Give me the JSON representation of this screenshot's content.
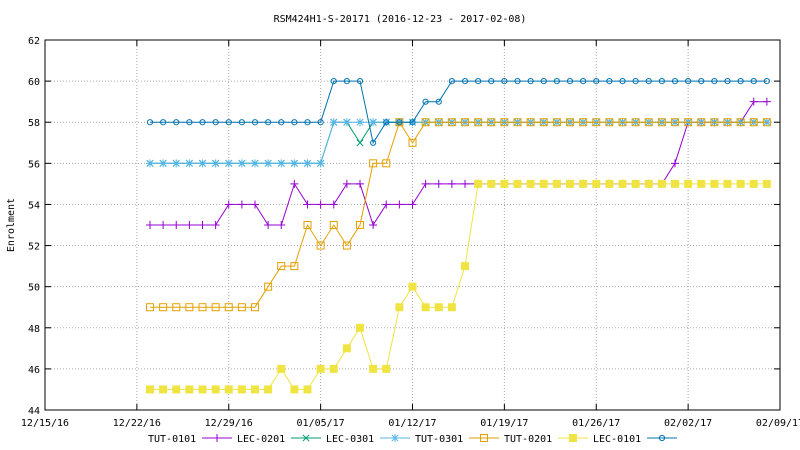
{
  "chart_data": {
    "type": "line",
    "title": "RSM424H1-S-20171 (2016-12-23 - 2017-02-08)",
    "xlabel": "",
    "ylabel": "Enrolment",
    "xlim": [
      "2016-12-15",
      "2017-02-09"
    ],
    "ylim": [
      44,
      62
    ],
    "x_ticks": [
      "12/15/16",
      "12/22/16",
      "12/29/16",
      "01/05/17",
      "01/12/17",
      "01/19/17",
      "01/26/17",
      "02/02/17",
      "02/09/17"
    ],
    "y_ticks": [
      44,
      46,
      48,
      50,
      52,
      54,
      56,
      58,
      60,
      62
    ],
    "grid": true,
    "legend_position": "bottom",
    "x": [
      "2016-12-23",
      "2016-12-24",
      "2016-12-25",
      "2016-12-26",
      "2016-12-27",
      "2016-12-28",
      "2016-12-29",
      "2016-12-30",
      "2016-12-31",
      "2017-01-01",
      "2017-01-02",
      "2017-01-03",
      "2017-01-04",
      "2017-01-05",
      "2017-01-06",
      "2017-01-07",
      "2017-01-08",
      "2017-01-09",
      "2017-01-10",
      "2017-01-11",
      "2017-01-12",
      "2017-01-13",
      "2017-01-14",
      "2017-01-15",
      "2017-01-16",
      "2017-01-17",
      "2017-01-18",
      "2017-01-19",
      "2017-01-20",
      "2017-01-21",
      "2017-01-22",
      "2017-01-23",
      "2017-01-24",
      "2017-01-25",
      "2017-01-26",
      "2017-01-27",
      "2017-01-28",
      "2017-01-29",
      "2017-01-30",
      "2017-01-31",
      "2017-02-01",
      "2017-02-02",
      "2017-02-03",
      "2017-02-04",
      "2017-02-05",
      "2017-02-06",
      "2017-02-07",
      "2017-02-08"
    ],
    "series": [
      {
        "name": "TUT-0101",
        "color": "#9400d3",
        "marker": "plus",
        "values": [
          53,
          53,
          53,
          53,
          53,
          53,
          54,
          54,
          54,
          53,
          53,
          55,
          54,
          54,
          54,
          55,
          55,
          53,
          54,
          54,
          54,
          55,
          55,
          55,
          55,
          55,
          55,
          55,
          55,
          55,
          55,
          55,
          55,
          55,
          55,
          55,
          55,
          55,
          55,
          55,
          56,
          58,
          58,
          58,
          58,
          58,
          59,
          59
        ]
      },
      {
        "name": "LEC-0201",
        "color": "#009e73",
        "marker": "x",
        "values": [
          56,
          56,
          56,
          56,
          56,
          56,
          56,
          56,
          56,
          56,
          56,
          56,
          56,
          56,
          58,
          58,
          57,
          58,
          58,
          58,
          58,
          58,
          58,
          58,
          58,
          58,
          58,
          58,
          58,
          58,
          58,
          58,
          58,
          58,
          58,
          58,
          58,
          58,
          58,
          58,
          58,
          58,
          58,
          58,
          58,
          58,
          58,
          58
        ]
      },
      {
        "name": "LEC-0301",
        "color": "#56b4e9",
        "marker": "star",
        "values": [
          56,
          56,
          56,
          56,
          56,
          56,
          56,
          56,
          56,
          56,
          56,
          56,
          56,
          56,
          58,
          58,
          58,
          58,
          58,
          58,
          58,
          58,
          58,
          58,
          58,
          58,
          58,
          58,
          58,
          58,
          58,
          58,
          58,
          58,
          58,
          58,
          58,
          58,
          58,
          58,
          58,
          58,
          58,
          58,
          58,
          58,
          58,
          58
        ]
      },
      {
        "name": "TUT-0301",
        "color": "#e69f00",
        "marker": "square-open",
        "values": [
          49,
          49,
          49,
          49,
          49,
          49,
          49,
          49,
          49,
          50,
          51,
          51,
          53,
          52,
          53,
          52,
          53,
          56,
          56,
          58,
          57,
          58,
          58,
          58,
          58,
          58,
          58,
          58,
          58,
          58,
          58,
          58,
          58,
          58,
          58,
          58,
          58,
          58,
          58,
          58,
          58,
          58,
          58,
          58,
          58,
          58,
          58,
          58
        ]
      },
      {
        "name": "TUT-0201",
        "color": "#f0e442",
        "marker": "square-filled",
        "values": [
          45,
          45,
          45,
          45,
          45,
          45,
          45,
          45,
          45,
          45,
          46,
          45,
          45,
          46,
          46,
          47,
          48,
          46,
          46,
          49,
          50,
          49,
          49,
          49,
          51,
          55,
          55,
          55,
          55,
          55,
          55,
          55,
          55,
          55,
          55,
          55,
          55,
          55,
          55,
          55,
          55,
          55,
          55,
          55,
          55,
          55,
          55,
          55
        ]
      },
      {
        "name": "LEC-0101",
        "color": "#0072b2",
        "marker": "circle-open",
        "values": [
          58,
          58,
          58,
          58,
          58,
          58,
          58,
          58,
          58,
          58,
          58,
          58,
          58,
          58,
          60,
          60,
          60,
          57,
          58,
          58,
          58,
          59,
          59,
          60,
          60,
          60,
          60,
          60,
          60,
          60,
          60,
          60,
          60,
          60,
          60,
          60,
          60,
          60,
          60,
          60,
          60,
          60,
          60,
          60,
          60,
          60,
          60,
          60
        ]
      }
    ]
  }
}
